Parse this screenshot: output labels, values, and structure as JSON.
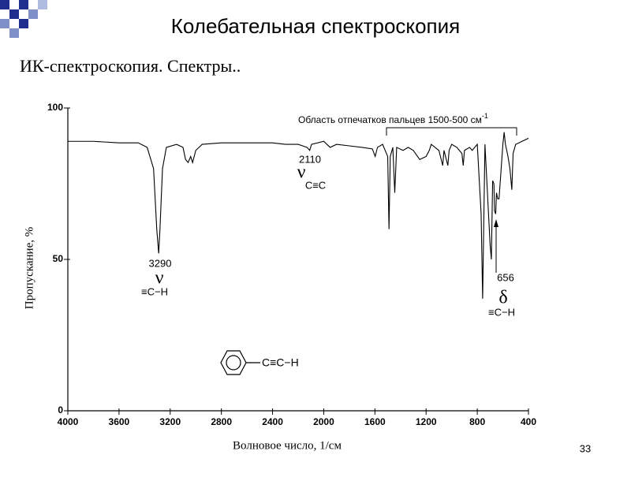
{
  "header": {
    "title": "Колебательная спектроскопия",
    "subtitle": "ИК-спектроскопия. Спектры..",
    "page_number": "33"
  },
  "chart_data": {
    "type": "line",
    "x_label": "Волновое число, 1/см",
    "y_label": "Пропускание, %",
    "x": [
      4000,
      3800,
      3600,
      3450,
      3380,
      3330,
      3305,
      3290,
      3280,
      3260,
      3230,
      3150,
      3100,
      3080,
      3060,
      3040,
      3025,
      3000,
      2950,
      2800,
      2600,
      2400,
      2300,
      2200,
      2130,
      2110,
      2095,
      2000,
      1950,
      1900,
      1800,
      1700,
      1620,
      1598,
      1580,
      1540,
      1500,
      1490,
      1480,
      1460,
      1445,
      1430,
      1380,
      1340,
      1300,
      1250,
      1200,
      1175,
      1160,
      1100,
      1070,
      1060,
      1030,
      1020,
      1000,
      960,
      920,
      910,
      900,
      860,
      840,
      800,
      770,
      758,
      750,
      740,
      700,
      690,
      680,
      670,
      665,
      656,
      650,
      640,
      630,
      600,
      590,
      580,
      560,
      545,
      530,
      520,
      500,
      450,
      400
    ],
    "values": [
      89,
      89,
      88.5,
      88.5,
      87,
      80,
      60,
      52,
      60,
      80,
      87,
      88,
      87,
      83,
      82,
      84,
      82,
      86,
      88,
      88.5,
      88.5,
      88.5,
      88,
      88,
      87,
      86,
      88,
      89,
      87,
      88,
      87.5,
      87,
      86.5,
      84,
      87,
      88,
      84,
      60,
      84,
      87,
      72,
      87,
      86,
      87,
      86,
      83,
      84,
      86,
      88,
      86,
      81,
      86,
      81,
      86,
      88,
      87,
      85,
      81,
      86,
      87,
      86,
      88,
      65,
      37,
      60,
      88,
      55,
      50,
      76,
      75,
      66,
      65,
      72,
      70,
      70,
      88,
      92,
      88,
      84,
      80,
      73,
      85,
      88,
      89,
      90
    ],
    "color": "#000000",
    "xlim": [
      4000,
      400
    ],
    "ylim": [
      0,
      100
    ],
    "xticks": [
      4000,
      3600,
      3200,
      2800,
      2400,
      2000,
      1600,
      1200,
      800,
      400
    ],
    "yticks": [
      0,
      50,
      100
    ],
    "annotations": {
      "fingerprint": "Область отпечатков пальцев 1500-500 см",
      "fingerprint_sup": "-1",
      "peak1_value": "3290",
      "peak1_symbol": "ν",
      "peak1_group": "≡C−H",
      "peak2_value": "2110",
      "peak2_symbol": "ν",
      "peak2_group": "C≡C",
      "peak3_value": "656",
      "peak3_symbol": "δ",
      "peak3_group": "≡C−H",
      "structure_group": "C≡C−H"
    }
  }
}
